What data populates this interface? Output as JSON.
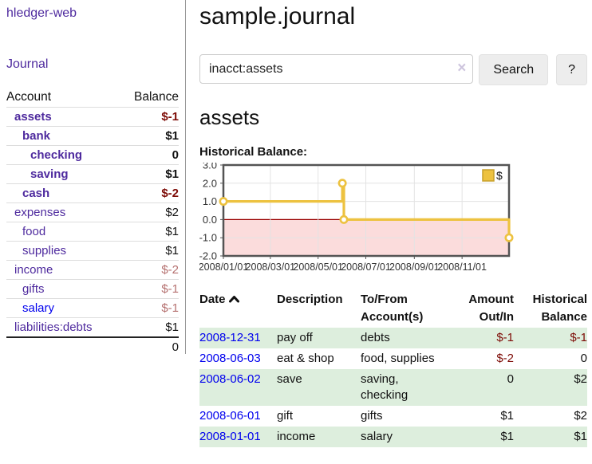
{
  "colors": {
    "accent_purple": "#4e2a9e",
    "link_blue": "#0000ee",
    "negative_strong": "#7d0b06",
    "negative_soft": "#b5706f",
    "row_stripe_green": "#ddeedd",
    "chart_line_gold": "#EDC240",
    "chart_negative_region": "#fbdcdc",
    "chart_zero_line": "#990000"
  },
  "app": {
    "brand": "hledger-web",
    "nav_journal": "Journal"
  },
  "sidebar": {
    "col_account": "Account",
    "col_balance": "Balance",
    "rows": [
      {
        "name": "assets",
        "depth": 1,
        "balance": "$-1",
        "bold": true,
        "tone": "strong-neg",
        "link": "purple"
      },
      {
        "name": "bank",
        "depth": 2,
        "balance": "$1",
        "bold": true,
        "tone": "plain",
        "link": "purple"
      },
      {
        "name": "checking",
        "depth": 3,
        "balance": "0",
        "bold": true,
        "tone": "plain",
        "link": "purple"
      },
      {
        "name": "saving",
        "depth": 3,
        "balance": "$1",
        "bold": true,
        "tone": "plain",
        "link": "purple"
      },
      {
        "name": "cash",
        "depth": 2,
        "balance": "$-2",
        "bold": true,
        "tone": "strong-neg",
        "link": "purple"
      },
      {
        "name": "expenses",
        "depth": 1,
        "balance": "$2",
        "bold": false,
        "tone": "plain",
        "link": "purple"
      },
      {
        "name": "food",
        "depth": 2,
        "balance": "$1",
        "bold": false,
        "tone": "plain",
        "link": "purple"
      },
      {
        "name": "supplies",
        "depth": 2,
        "balance": "$1",
        "bold": false,
        "tone": "plain",
        "link": "purple"
      },
      {
        "name": "income",
        "depth": 1,
        "balance": "$-2",
        "bold": false,
        "tone": "soft-neg",
        "link": "purple"
      },
      {
        "name": "gifts",
        "depth": 2,
        "balance": "$-1",
        "bold": false,
        "tone": "soft-neg",
        "link": "purple"
      },
      {
        "name": "salary",
        "depth": 2,
        "balance": "$-1",
        "bold": false,
        "tone": "soft-neg",
        "link": "blue"
      },
      {
        "name": "liabilities:debts",
        "depth": 1,
        "balance": "$1",
        "bold": false,
        "tone": "plain",
        "link": "purple"
      }
    ],
    "total": "0"
  },
  "header": {
    "title": "sample.journal"
  },
  "search": {
    "query": "inacct:assets",
    "clear_icon": "×",
    "button_label": "Search",
    "help_label": "?"
  },
  "account_page": {
    "title": "assets",
    "chart_label": "Historical Balance:"
  },
  "chart_data": {
    "type": "line",
    "title": "Historical Balance",
    "step": true,
    "series": [
      {
        "name": "$",
        "color": "#EDC240",
        "points": [
          [
            "2008-01-01",
            1
          ],
          [
            "2008-06-01",
            2
          ],
          [
            "2008-06-03",
            0
          ],
          [
            "2008-12-31",
            -1
          ]
        ]
      }
    ],
    "x_ticks": [
      "2008/01/01",
      "2008/03/01",
      "2008/05/01",
      "2008/07/01",
      "2008/09/01",
      "2008/11/01"
    ],
    "y_ticks": [
      "3.0",
      "2.0",
      "1.0",
      "0.0",
      "-1.0",
      "-2.0"
    ],
    "xlim": [
      "2008-01-01",
      "2008-12-31"
    ],
    "ylim": [
      -2,
      3
    ],
    "grid": true,
    "legend_position": "top-right",
    "legend_label": "$"
  },
  "register": {
    "columns": [
      {
        "lines": [
          "Date"
        ],
        "align": "left",
        "sortable": true,
        "sort": "asc"
      },
      {
        "lines": [
          "Description"
        ],
        "align": "left",
        "sortable": false
      },
      {
        "lines": [
          "To/From",
          "Account(s)"
        ],
        "align": "left",
        "sortable": false
      },
      {
        "lines": [
          "Amount",
          "Out/In"
        ],
        "align": "right",
        "sortable": false
      },
      {
        "lines": [
          "Historical",
          "Balance"
        ],
        "align": "right",
        "sortable": false
      }
    ],
    "rows": [
      {
        "date": "2008-12-31",
        "description": "pay off",
        "accounts": "debts",
        "amount": "$-1",
        "balance": "$-1"
      },
      {
        "date": "2008-06-03",
        "description": "eat & shop",
        "accounts": "food, supplies",
        "amount": "$-2",
        "balance": "0"
      },
      {
        "date": "2008-06-02",
        "description": "save",
        "accounts": "saving, checking",
        "amount": "0",
        "balance": "$2"
      },
      {
        "date": "2008-06-01",
        "description": "gift",
        "accounts": "gifts",
        "amount": "$1",
        "balance": "$2"
      },
      {
        "date": "2008-01-01",
        "description": "income",
        "accounts": "salary",
        "amount": "$1",
        "balance": "$1"
      }
    ]
  }
}
